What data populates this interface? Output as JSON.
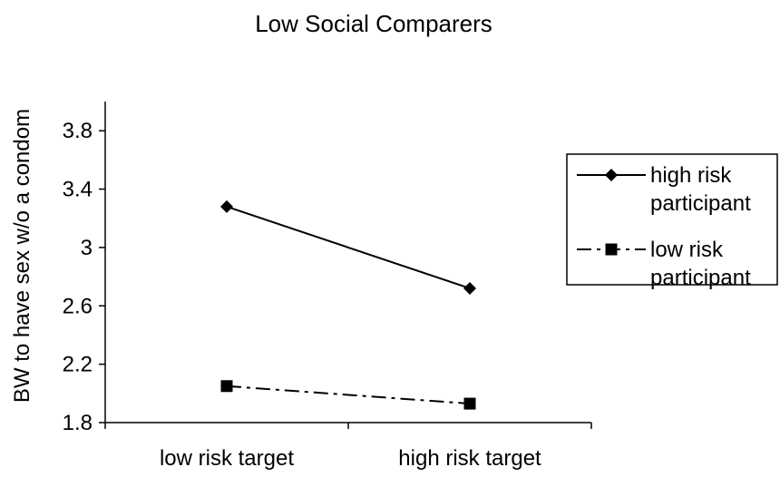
{
  "chart_data": {
    "type": "line",
    "title": "Low Social Comparers",
    "xlabel": "",
    "ylabel": "BW to have sex w/o a condom",
    "categories": [
      "low risk target",
      "high risk target"
    ],
    "yticks": [
      "1.8",
      "2.2",
      "2.6",
      "3",
      "3.4",
      "3.8"
    ],
    "ylim": [
      1.8,
      4.0
    ],
    "grid": false,
    "legend_position": "right",
    "series": [
      {
        "name": "high risk participant",
        "name_lines": [
          "high risk",
          "participant"
        ],
        "values": [
          3.28,
          2.72
        ],
        "marker": "diamond",
        "line_style": "solid"
      },
      {
        "name": "low risk participant",
        "name_lines": [
          "low risk",
          "participant"
        ],
        "values": [
          2.05,
          1.93
        ],
        "marker": "square",
        "line_style": "dash-dot"
      }
    ]
  }
}
